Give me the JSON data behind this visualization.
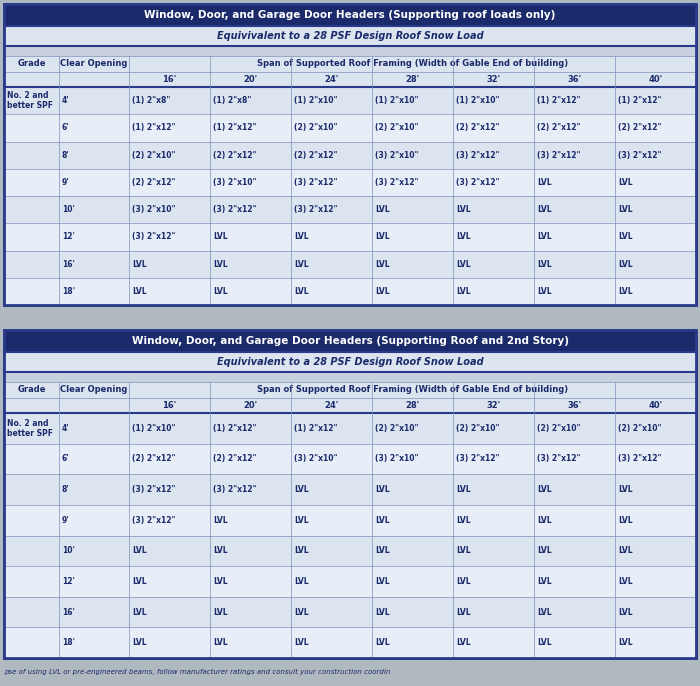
{
  "bg_color": "#b0b8c0",
  "table_border_color": "#2a3a8a",
  "header_bg": "#1a2a6a",
  "header_text_color": "#ffffff",
  "subheader_bg": "#dce4f0",
  "subheader_text_color": "#1a2a6a",
  "cell_bg_even": "#dce4f0",
  "cell_bg_odd": "#e8eef8",
  "cell_bg_gap": "#c8d0e0",
  "cell_text_color": "#1a2a6a",
  "grid_color": "#8090b8",
  "table1_title": "Window, Door, and Garage Door Headers (Supporting roof loads only)",
  "table1_subtitle": "Equivivalent to a 28 PSF Design Roof Snow Load",
  "table2_title": "Window, Door, and Garage Door Headers (Supporting Roof and 2nd Story)",
  "table2_subtitle": "Equivivalent to a 28 PSF Design Roof Snow Load",
  "col_header_span": "Span of Supported Roof Framing (Width of Gable End of building)",
  "col_span_labels": [
    "16'",
    "20'",
    "24'",
    "28'",
    "32'",
    "36'",
    "40'"
  ],
  "table1_data": [
    [
      "No. 2 and\nbetter SPF",
      "4'",
      "(1) 2\"x8\"",
      "(1) 2\"x8\"",
      "(1) 2\"x10\"",
      "(1) 2\"x10\"",
      "(1) 2\"x10\"",
      "(1) 2\"x12\"",
      "(1) 2\"x12\""
    ],
    [
      "",
      "6'",
      "(1) 2\"x12\"",
      "(1) 2\"x12\"",
      "(2) 2\"x10\"",
      "(2) 2\"x10\"",
      "(2) 2\"x12\"",
      "(2) 2\"x12\"",
      "(2) 2\"x12\""
    ],
    [
      "",
      "8'",
      "(2) 2\"x10\"",
      "(2) 2\"x12\"",
      "(2) 2\"x12\"",
      "(3) 2\"x10\"",
      "(3) 2\"x12\"",
      "(3) 2\"x12\"",
      "(3) 2\"x12\""
    ],
    [
      "",
      "9'",
      "(2) 2\"x12\"",
      "(3) 2\"x10\"",
      "(3) 2\"x12\"",
      "(3) 2\"x12\"",
      "(3) 2\"x12\"",
      "LVL",
      "LVL"
    ],
    [
      "",
      "10'",
      "(3) 2\"x10\"",
      "(3) 2\"x12\"",
      "(3) 2\"x12\"",
      "LVL",
      "LVL",
      "LVL",
      "LVL"
    ],
    [
      "",
      "12'",
      "(3) 2\"x12\"",
      "LVL",
      "LVL",
      "LVL",
      "LVL",
      "LVL",
      "LVL"
    ],
    [
      "",
      "16'",
      "LVL",
      "LVL",
      "LVL",
      "LVL",
      "LVL",
      "LVL",
      "LVL"
    ],
    [
      "",
      "18'",
      "LVL",
      "LVL",
      "LVL",
      "LVL",
      "LVL",
      "LVL",
      "LVL"
    ]
  ],
  "table2_data": [
    [
      "No. 2 and\nbetter SPF",
      "4'",
      "(1) 2\"x10\"",
      "(1) 2\"x12\"",
      "(1) 2\"x12\"",
      "(2) 2\"x10\"",
      "(2) 2\"x10\"",
      "(2) 2\"x10\"",
      "(2) 2\"x10\""
    ],
    [
      "",
      "6'",
      "(2) 2\"x12\"",
      "(2) 2\"x12\"",
      "(3) 2\"x10\"",
      "(3) 2\"x10\"",
      "(3) 2\"x12\"",
      "(3) 2\"x12\"",
      "(3) 2\"x12\""
    ],
    [
      "",
      "8'",
      "(3) 2\"x12\"",
      "(3) 2\"x12\"",
      "LVL",
      "LVL",
      "LVL",
      "LVL",
      "LVL"
    ],
    [
      "",
      "9'",
      "(3) 2\"x12\"",
      "LVL",
      "LVL",
      "LVL",
      "LVL",
      "LVL",
      "LVL"
    ],
    [
      "",
      "10'",
      "LVL",
      "LVL",
      "LVL",
      "LVL",
      "LVL",
      "LVL",
      "LVL"
    ],
    [
      "",
      "12'",
      "LVL",
      "LVL",
      "LVL",
      "LVL",
      "LVL",
      "LVL",
      "LVL"
    ],
    [
      "",
      "16'",
      "LVL",
      "LVL",
      "LVL",
      "LVL",
      "LVL",
      "LVL",
      "LVL"
    ],
    [
      "",
      "18'",
      "LVL",
      "LVL",
      "LVL",
      "LVL",
      "LVL",
      "LVL",
      "LVL"
    ]
  ],
  "footer_text": "pse of using LVL or pre-engineered beams, follow manufacturer ratings and consult your construction coordin"
}
